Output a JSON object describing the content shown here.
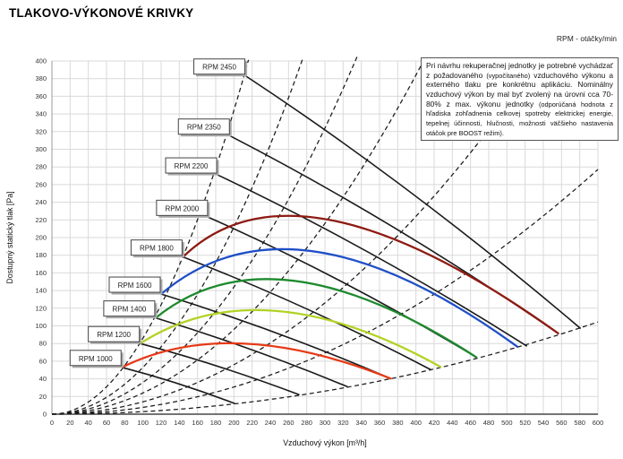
{
  "page": {
    "title": "TLAKOVO-VÝKONOVÉ KRIVKY",
    "rpm_unit_note": "RPM - otáčky/min"
  },
  "note_box": {
    "text_main_1": "Pri návrhu rekuperačnej jednotky je potrebné vychádzať z požadovaného ",
    "text_small_1": "(vypočítaného)",
    "text_main_2": " vzduchového výkonu a externého tlaku pre konkrétnu aplikáciu. Nominálny vzduchový výkon by mal byť zvolený na úrovni cca 70-80% z max. výkonu jednotky ",
    "text_small_2": "(odporúčaná hodnota z hľadiska zohľadnenia celkovej spotreby elektrickej energie, tepelnej účinnosti, hlučnosti, možnosti väčšieho nastavenia otáčok pre BOOST režim)."
  },
  "chart_data": {
    "type": "line",
    "title": "TLAKOVO-VÝKONOVÉ KRIVKY",
    "xlabel": "Vzduchový výkon [m³/h]",
    "ylabel": "Dostupný statický tlak [Pa]",
    "xlim": [
      0,
      600
    ],
    "ylim": [
      0,
      400
    ],
    "x_tick_step": 20,
    "y_tick_step": 20,
    "grid": true,
    "grid_color": "#d9d9d9",
    "axis_color": "#333333",
    "line_color": "#1a1a1a",
    "legend_position": "labels-on-curves",
    "rpm_curves": [
      {
        "rpm": 2450,
        "label": "RPM 2450",
        "line": {
          "start": [
            213,
            383
          ],
          "end": [
            581,
            97
          ],
          "bulge": 18
        },
        "arc": null
      },
      {
        "rpm": 2350,
        "label": "RPM 2350",
        "line": {
          "start": [
            196,
            315
          ],
          "end": [
            557,
            91
          ],
          "bulge": 16
        },
        "arc": null
      },
      {
        "rpm": 2200,
        "label": "RPM 2200",
        "line": {
          "start": [
            182,
            271
          ],
          "end": [
            522,
            77
          ],
          "bulge": 14
        },
        "arc": null
      },
      {
        "rpm": 2000,
        "label": "RPM 2000",
        "line": {
          "start": [
            172,
            223
          ],
          "end": [
            467,
            64
          ],
          "bulge": 12
        },
        "arc": null
      },
      {
        "rpm": 1800,
        "label": "RPM 1800",
        "line": {
          "start": [
            144,
            178
          ],
          "end": [
            417,
            50
          ],
          "bulge": 10
        },
        "arc": {
          "color": "#8e1b12",
          "start": [
            144,
            178
          ],
          "peak": [
            310,
            219
          ],
          "end": [
            557,
            91
          ]
        }
      },
      {
        "rpm": 1600,
        "label": "RPM 1600",
        "line": {
          "start": [
            120,
            136
          ],
          "end": [
            373,
            40
          ],
          "bulge": 8
        },
        "arc": {
          "color": "#1f4fc8",
          "start": [
            120,
            136
          ],
          "peak": [
            290,
            184
          ],
          "end": [
            512,
            76
          ]
        }
      },
      {
        "rpm": 1400,
        "label": "RPM 1400",
        "line": {
          "start": [
            114,
            109
          ],
          "end": [
            325,
            31
          ],
          "bulge": 6
        },
        "arc": {
          "color": "#1d8a2e",
          "start": [
            114,
            109
          ],
          "peak": [
            266,
            151
          ],
          "end": [
            467,
            64
          ]
        }
      },
      {
        "rpm": 1200,
        "label": "RPM 1200",
        "line": {
          "start": [
            97,
            80
          ],
          "end": [
            272,
            22
          ],
          "bulge": 5
        },
        "arc": {
          "color": "#b2d225",
          "start": [
            97,
            80
          ],
          "peak": [
            246,
            117
          ],
          "end": [
            428,
            53
          ]
        }
      },
      {
        "rpm": 1000,
        "label": "RPM 1000",
        "line": {
          "start": [
            77,
            53
          ],
          "end": [
            201,
            12
          ],
          "bulge": 4
        },
        "arc": {
          "color": "#e63a17",
          "start": [
            77,
            53
          ],
          "peak": [
            210,
            80
          ],
          "end": [
            373,
            40
          ]
        }
      }
    ],
    "system_curves": {
      "style": "dashed",
      "formula": "y = k*x^2",
      "k_values": [
        0.0086,
        0.0053,
        0.0036,
        0.0024,
        0.0014,
        0.00077,
        0.00029
      ]
    }
  }
}
